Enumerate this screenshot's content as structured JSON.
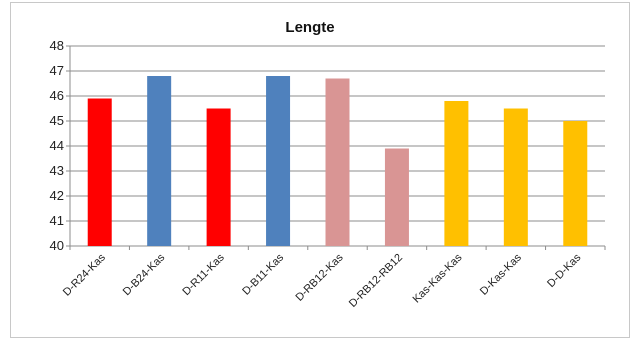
{
  "chart_data": {
    "type": "bar",
    "title": "Lengte",
    "xlabel": "",
    "ylabel": "",
    "ylim": [
      40,
      48
    ],
    "yticks": [
      40,
      41,
      42,
      43,
      44,
      45,
      46,
      47,
      48
    ],
    "grid": true,
    "legend": "none",
    "categories": [
      "D-R24-Kas",
      "D-B24-Kas",
      "D-R11-Kas",
      "D-B11-Kas",
      "D-RB12-Kas",
      "D-RB12-RB12",
      "Kas-Kas-Kas",
      "D-Kas-Kas",
      "D-D-Kas"
    ],
    "values": [
      45.9,
      46.8,
      45.5,
      46.8,
      46.7,
      43.9,
      45.8,
      45.5,
      45.0
    ],
    "bar_colors": [
      "#ff0000",
      "#4f81bd",
      "#ff0000",
      "#4f81bd",
      "#d99594",
      "#d99594",
      "#ffc000",
      "#ffc000",
      "#ffc000"
    ]
  }
}
